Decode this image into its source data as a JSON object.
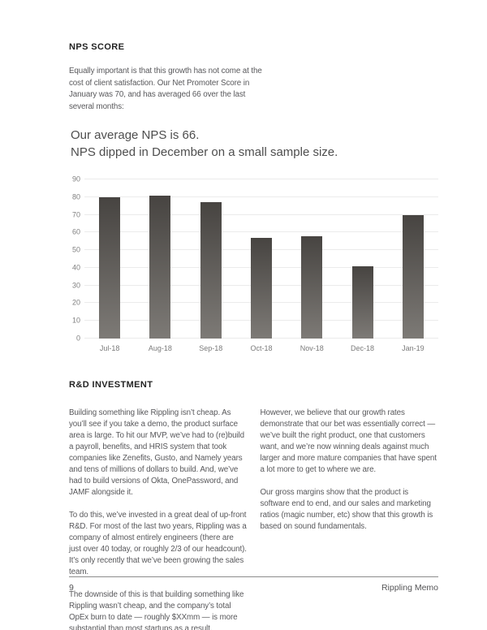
{
  "nps_section": {
    "heading": "NPS SCORE",
    "intro": "Equally important is that this growth has not come at the cost of client satisfaction. Our Net Promoter Score in January was 70, and has averaged 66 over the last several months:"
  },
  "chart_title": {
    "line1": "Our average NPS is 66.",
    "line2": "NPS dipped in December on a small sample size."
  },
  "chart_data": {
    "type": "bar",
    "title": "Our average NPS is 66. NPS dipped in December on a small sample size.",
    "categories": [
      "Jul-18",
      "Aug-18",
      "Sep-18",
      "Oct-18",
      "Nov-18",
      "Dec-18",
      "Jan-19"
    ],
    "values": [
      80,
      81,
      77,
      57,
      58,
      41,
      70
    ],
    "xlabel": "",
    "ylabel": "",
    "ylim": [
      0,
      90
    ],
    "ytick_step": 10,
    "grid": true,
    "legend": false,
    "bar_color_top": "#474441",
    "bar_color_bottom": "#7d7a76",
    "gridline_color": "#ebebeb",
    "tick_label_color": "#7f7f7f"
  },
  "rd_section": {
    "heading": "R&D INVESTMENT",
    "left_paragraphs": [
      "Building something like Rippling isn’t cheap. As you’ll see if you take a demo, the product surface area is large. To hit our MVP, we’ve had to (re)build a payroll, benefits, and HRIS system that took companies like Zenefits, Gusto, and Namely years and tens of millions of dollars to build. And, we’ve had to build versions of Okta, OnePassword, and JAMF alongside it.",
      "To do this, we’ve invested in a great deal of up-front R&D. For most of the last two years, Rippling was a company of almost entirely engineers (there are just over 40 today, or roughly 2/3 of our headcount). It’s only recently that we’ve been growing the sales team.",
      "The downside of this is that building something like Rippling wasn’t cheap, and the company’s total OpEx burn to date — roughly $XXmm — is more substantial than most startups as a result."
    ],
    "right_paragraphs": [
      "However, we believe that our growth rates demonstrate that our bet was essentially correct — we’ve built the right product, one that customers want, and we’re now winning deals against much larger and more mature companies that have spent a lot more to get to where we are.",
      "Our gross margins show that the product is software end to end, and our sales and marketing ratios (magic number, etc) show that this growth is based on sound fundamentals."
    ]
  },
  "footer": {
    "page_number": "9",
    "doc_title": "Rippling Memo"
  }
}
